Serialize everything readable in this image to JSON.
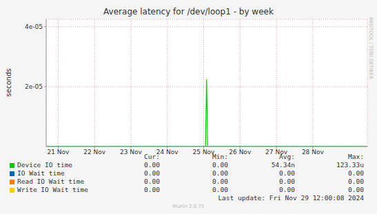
{
  "chart_data": {
    "type": "line",
    "title": "Average latency for /dev/loop1 - by week",
    "y_label": "seconds",
    "x": [
      20.67,
      21,
      21.5,
      22,
      22.5,
      23,
      23.5,
      24,
      24.5,
      25,
      25.05,
      25.08,
      25.11,
      25.5,
      26,
      26.5,
      27,
      27.5,
      28,
      28.5,
      29,
      29.5
    ],
    "xlim": [
      20.67,
      29.5
    ],
    "xticks": [
      {
        "value": 21,
        "label": "21 Nov"
      },
      {
        "value": 22,
        "label": "22 Nov"
      },
      {
        "value": 23,
        "label": "23 Nov"
      },
      {
        "value": 24,
        "label": "24 Nov"
      },
      {
        "value": 25,
        "label": "25 Nov"
      },
      {
        "value": 26,
        "label": "26 Nov"
      },
      {
        "value": 27,
        "label": "27 Nov"
      },
      {
        "value": 28,
        "label": "28 Nov"
      }
    ],
    "ylim": [
      0,
      4.25e-05
    ],
    "yticks": [
      {
        "value": 2e-05,
        "label": "2e-05"
      },
      {
        "value": 4e-05,
        "label": "4e-05"
      }
    ],
    "grid": true,
    "stat_headers": [
      "Cur:",
      "Min:",
      "Avg:",
      "Max:"
    ],
    "series": [
      {
        "name": "Device IO time",
        "color": "#00cc00",
        "values": [
          0,
          0,
          0,
          0,
          0,
          0,
          0,
          0,
          0,
          0,
          0,
          2.25e-05,
          0,
          0,
          0,
          0,
          0,
          0,
          0,
          0,
          0,
          0
        ],
        "stats": [
          "0.00",
          "0.00",
          "54.34n",
          "123.33u"
        ]
      },
      {
        "name": "IO Wait time",
        "color": "#0066b3",
        "values": [
          0,
          0,
          0,
          0,
          0,
          0,
          0,
          0,
          0,
          0,
          0,
          0,
          0,
          0,
          0,
          0,
          0,
          0,
          0,
          0,
          0,
          0
        ],
        "stats": [
          "0.00",
          "0.00",
          "0.00",
          "0.00"
        ]
      },
      {
        "name": "Read IO Wait time",
        "color": "#ff8000",
        "values": [
          0,
          0,
          0,
          0,
          0,
          0,
          0,
          0,
          0,
          0,
          0,
          0,
          0,
          0,
          0,
          0,
          0,
          0,
          0,
          0,
          0,
          0
        ],
        "stats": [
          "0.00",
          "0.00",
          "0.00",
          "0.00"
        ]
      },
      {
        "name": "Write IO Wait time",
        "color": "#ffcc00",
        "values": [
          0,
          0,
          0,
          0,
          0,
          0,
          0,
          0,
          0,
          0,
          0,
          0,
          0,
          0,
          0,
          0,
          0,
          0,
          0,
          0,
          0,
          0
        ],
        "stats": [
          "0.00",
          "0.00",
          "0.00",
          "0.00"
        ]
      }
    ],
    "footer": "Last update: Fri Nov 29 12:00:08 2024",
    "version": "Munin 2.0.75",
    "watermark": "RRDTOOL / TOBI OETIKER"
  }
}
